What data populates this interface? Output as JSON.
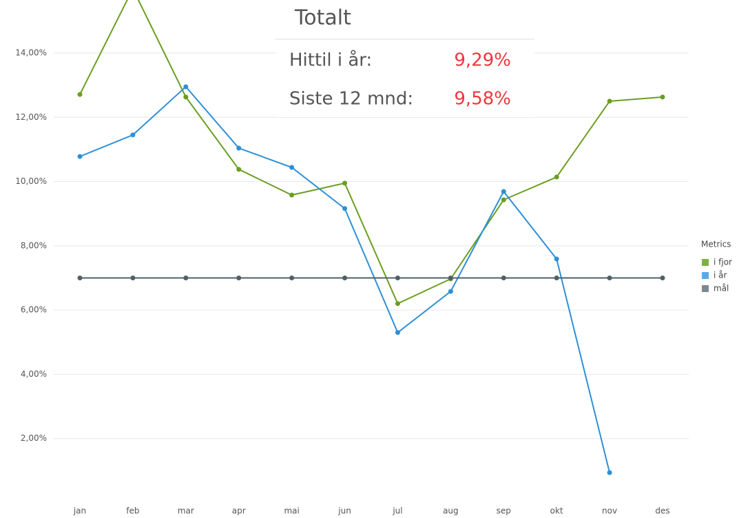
{
  "chart_data": {
    "type": "line",
    "categories": [
      "jan",
      "feb",
      "mar",
      "apr",
      "mai",
      "jun",
      "jul",
      "aug",
      "sep",
      "okt",
      "nov",
      "des"
    ],
    "series": [
      {
        "name": "i fjor",
        "color": "#6a9e1f",
        "legend_color": "#7cb342",
        "values": [
          12.71,
          16.0,
          12.63,
          10.38,
          9.58,
          9.95,
          6.2,
          6.97,
          9.43,
          10.14,
          12.5,
          12.63
        ]
      },
      {
        "name": "i år",
        "color": "#2e8fd6",
        "legend_color": "#5aa9e6",
        "values": [
          10.78,
          11.45,
          12.95,
          11.04,
          10.44,
          9.16,
          5.3,
          6.58,
          9.69,
          7.59,
          0.94,
          null
        ]
      },
      {
        "name": "mål",
        "color": "#4f5f68",
        "legend_color": "#7b8a92",
        "values": [
          7,
          7,
          7,
          7,
          7,
          7,
          7,
          7,
          7,
          7,
          7,
          7
        ]
      }
    ],
    "ylim": [
      0,
      15.65
    ],
    "yticks": [
      {
        "value": 2,
        "label": "2,00%"
      },
      {
        "value": 4,
        "label": "4,00%"
      },
      {
        "value": 6,
        "label": "6,00%"
      },
      {
        "value": 8,
        "label": "8,00%"
      },
      {
        "value": 10,
        "label": "10,00%"
      },
      {
        "value": 12,
        "label": "12,00%"
      },
      {
        "value": 14,
        "label": "14,00%"
      }
    ],
    "grid": true,
    "legend_title": "Metrics",
    "legend": "right"
  },
  "summary": {
    "title": "Totalt",
    "rows": [
      {
        "label": "Hittil i år:",
        "value": "9,29%"
      },
      {
        "label": "Siste 12 mnd:",
        "value": "9,58%"
      }
    ]
  }
}
